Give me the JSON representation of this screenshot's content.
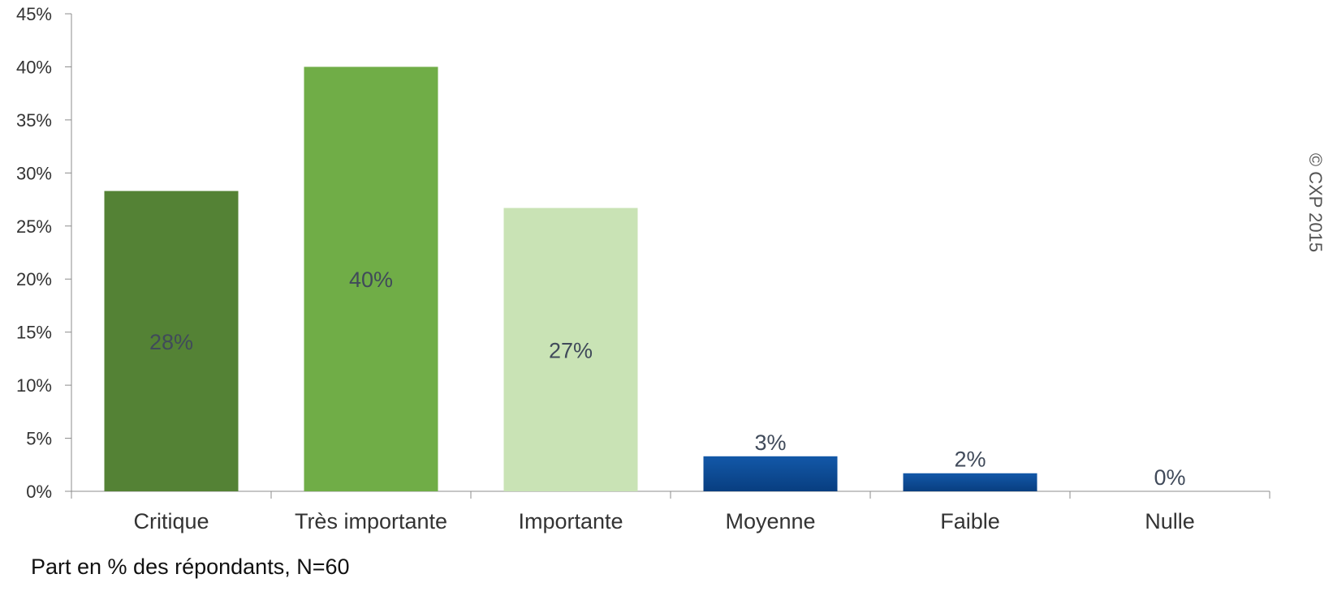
{
  "chart_data": {
    "type": "bar",
    "categories": [
      "Critique",
      "Très importante",
      "Importante",
      "Moyenne",
      "Faible",
      "Nulle"
    ],
    "values": [
      28.3,
      40.0,
      26.7,
      3.3,
      1.7,
      0.0
    ],
    "data_labels": [
      "28%",
      "40%",
      "27%",
      "3%",
      "2%",
      "0%"
    ],
    "colors": [
      "#548235",
      "#70AD47",
      "#C9E3B5",
      "#0B4A95",
      "#0B4A95",
      "#0B4A95"
    ],
    "yticks": [
      "0%",
      "5%",
      "10%",
      "15%",
      "20%",
      "25%",
      "30%",
      "35%",
      "40%",
      "45%"
    ],
    "ylim": [
      0,
      45
    ],
    "ytick_step": 5,
    "grid": false,
    "title": "",
    "xlabel": "",
    "ylabel": ""
  },
  "note": "Part en % des répondants, N=60",
  "copyright": "© CXP 2015"
}
